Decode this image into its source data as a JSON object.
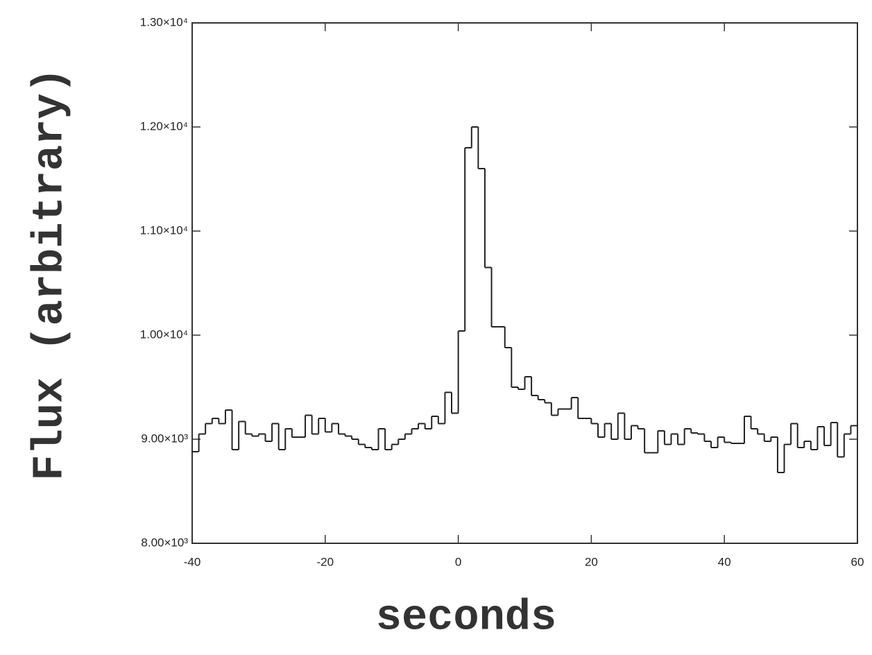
{
  "chart_data": {
    "type": "histogram",
    "x_label": "seconds",
    "y_label": "Flux (arbitrary)",
    "bins": [
      -40,
      -39,
      -38,
      -37,
      -36,
      -35,
      -34,
      -33,
      -32,
      -31,
      -30,
      -29,
      -28,
      -27,
      -26,
      -25,
      -24,
      -23,
      -22,
      -21,
      -20,
      -19,
      -18,
      -17,
      -16,
      -15,
      -14,
      -13,
      -12,
      -11,
      -10,
      -9,
      -8,
      -7,
      -6,
      -5,
      -4,
      -3,
      -2,
      -1,
      0,
      1,
      2,
      3,
      4,
      5,
      6,
      7,
      8,
      9,
      10,
      11,
      12,
      13,
      14,
      15,
      16,
      17,
      18,
      19,
      20,
      21,
      22,
      23,
      24,
      25,
      26,
      27,
      28,
      29,
      30,
      31,
      32,
      33,
      34,
      35,
      36,
      37,
      38,
      39,
      40,
      41,
      42,
      43,
      44,
      45,
      46,
      47,
      48,
      49,
      50,
      51,
      52,
      53,
      54,
      55,
      56,
      57,
      58,
      59,
      60
    ],
    "values": [
      8880,
      9050,
      9150,
      9200,
      9150,
      9280,
      8900,
      9170,
      9050,
      9030,
      9050,
      8980,
      9150,
      8900,
      9100,
      9020,
      9020,
      9230,
      9050,
      9200,
      9070,
      9150,
      9050,
      9030,
      9000,
      8950,
      8920,
      8900,
      9100,
      8900,
      8950,
      9000,
      9050,
      9100,
      9150,
      9100,
      9220,
      9150,
      9450,
      9250,
      10040,
      11800,
      12000,
      11600,
      10650,
      10080,
      10080,
      9880,
      9500,
      9480,
      9600,
      9420,
      9380,
      9350,
      9230,
      9290,
      9290,
      9400,
      9200,
      9200,
      9150,
      9020,
      9150,
      9000,
      9250,
      9000,
      9130,
      9100,
      8870,
      8870,
      9080,
      8950,
      9050,
      8950,
      9100,
      9060,
      9050,
      8980,
      8920,
      9020,
      8970,
      8960,
      8960,
      9220,
      9100,
      9050,
      8980,
      9020,
      8680,
      8950,
      9150,
      8920,
      8980,
      8900,
      9120,
      8940,
      9160,
      8830,
      9050,
      9130
    ],
    "color": "#222222",
    "xlim": [
      -40,
      60
    ],
    "xticks": [
      -40,
      -20,
      0,
      20,
      40,
      60
    ],
    "ylim": [
      8000,
      13000
    ],
    "yticks": [
      {
        "value": 8000,
        "label": "8.00×10³"
      },
      {
        "value": 9000,
        "label": "9.00×10³"
      },
      {
        "value": 10000,
        "label": "1.00×10⁴"
      },
      {
        "value": 11000,
        "label": "1.10×10⁴"
      },
      {
        "value": 12000,
        "label": "1.20×10⁴"
      },
      {
        "value": 13000,
        "label": "1.30×10⁴"
      }
    ]
  }
}
